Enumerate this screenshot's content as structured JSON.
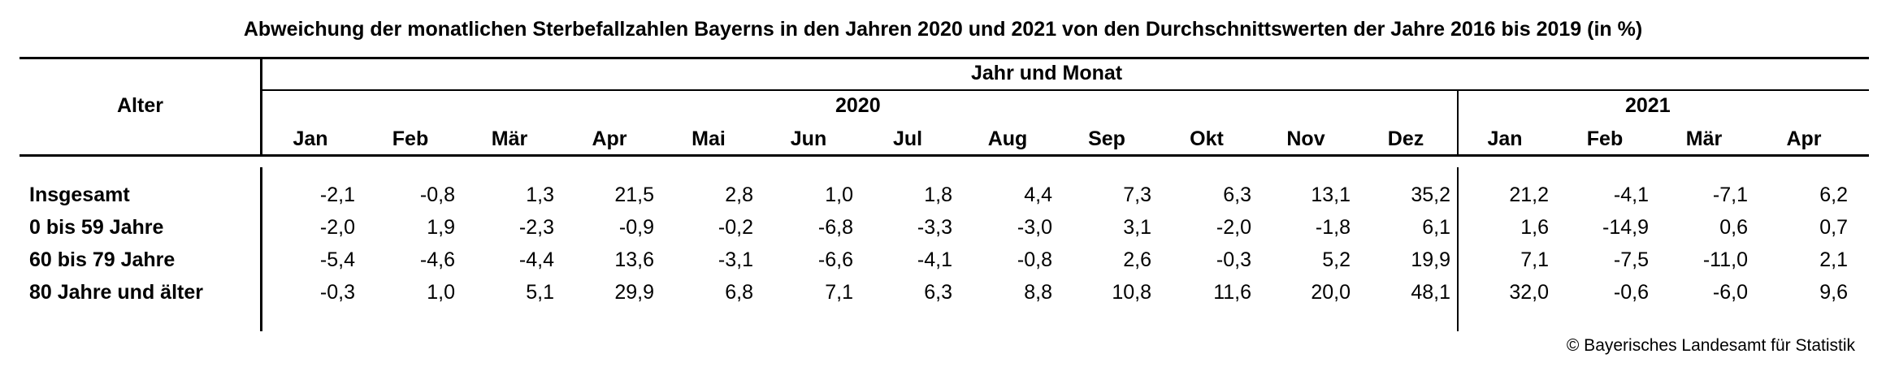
{
  "title": "Abweichung der monatlichen Sterbefallzahlen Bayerns in den Jahren 2020 und 2021 von den Durchschnittswerten der Jahre 2016 bis 2019 (in %)",
  "header": {
    "row_label": "Alter",
    "group_label": "Jahr und Monat",
    "years": [
      "2020",
      "2021"
    ],
    "months": [
      "Jan",
      "Feb",
      "Mär",
      "Apr",
      "Mai",
      "Jun",
      "Jul",
      "Aug",
      "Sep",
      "Okt",
      "Nov",
      "Dez",
      "Jan",
      "Feb",
      "Mär",
      "Apr"
    ]
  },
  "rows": [
    {
      "label": "Insgesamt",
      "values": [
        "-2,1",
        "-0,8",
        "1,3",
        "21,5",
        "2,8",
        "1,0",
        "1,8",
        "4,4",
        "7,3",
        "6,3",
        "13,1",
        "35,2",
        "21,2",
        "-4,1",
        "-7,1",
        "6,2"
      ]
    },
    {
      "label": "0 bis 59 Jahre",
      "values": [
        "-2,0",
        "1,9",
        "-2,3",
        "-0,9",
        "-0,2",
        "-6,8",
        "-3,3",
        "-3,0",
        "3,1",
        "-2,0",
        "-1,8",
        "6,1",
        "1,6",
        "-14,9",
        "0,6",
        "0,7"
      ]
    },
    {
      "label": "60 bis 79 Jahre",
      "values": [
        "-5,4",
        "-4,6",
        "-4,4",
        "13,6",
        "-3,1",
        "-6,6",
        "-4,1",
        "-0,8",
        "2,6",
        "-0,3",
        "5,2",
        "19,9",
        "7,1",
        "-7,5",
        "-11,0",
        "2,1"
      ]
    },
    {
      "label": "80 Jahre und älter",
      "values": [
        "-0,3",
        "1,0",
        "5,1",
        "29,9",
        "6,8",
        "7,1",
        "6,3",
        "8,8",
        "10,8",
        "11,6",
        "20,0",
        "48,1",
        "32,0",
        "-0,6",
        "-6,0",
        "9,6"
      ]
    }
  ],
  "footer": {
    "copyright": "© Bayerisches Landesamt für Statistik"
  }
}
